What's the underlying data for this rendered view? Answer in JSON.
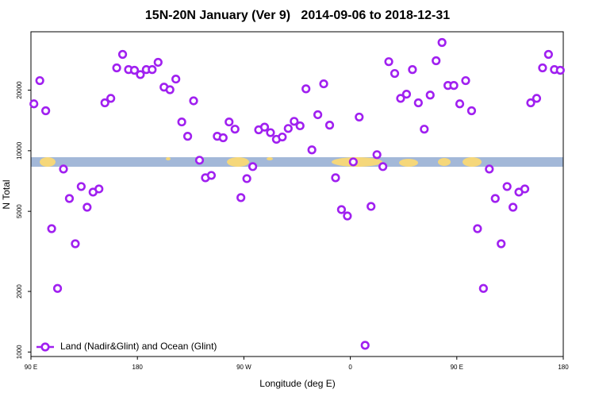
{
  "chart_data": {
    "type": "scatter",
    "title": "15N-20N January (Ver 9)   2014-09-06 to 2018-12-31",
    "x_label": "Longitude (deg E)",
    "y_label": "N Total",
    "xlim": [
      90,
      540
    ],
    "ylim": [
      950,
      39000
    ],
    "y_scale": "log",
    "xticks": [
      {
        "value": 90,
        "label": "90 E"
      },
      {
        "value": 180,
        "label": "180"
      },
      {
        "value": 270,
        "label": "90 W"
      },
      {
        "value": 360,
        "label": "0"
      },
      {
        "value": 450,
        "label": "90 E"
      },
      {
        "value": 540,
        "label": "180"
      }
    ],
    "yticks": [
      1000,
      2000,
      5000,
      10000,
      20000
    ],
    "legend": "lower left",
    "series": [
      {
        "name": "Land (Nadir&Glint) and Ocean (Glint)",
        "color": "#a020f0",
        "x": [
          92.5,
          97.5,
          102.5,
          107.5,
          112.5,
          117.5,
          122.5,
          127.5,
          132.5,
          137.5,
          142.5,
          147.5,
          152.5,
          157.5,
          162.5,
          167.5,
          172.5,
          177.5,
          182.5,
          187.5,
          192.5,
          197.5,
          202.5,
          207.5,
          212.5,
          217.5,
          222.5,
          227.5,
          232.5,
          237.5,
          242.5,
          247.5,
          252.5,
          257.5,
          262.5,
          267.5,
          272.5,
          277.5,
          282.5,
          287.5,
          292.5,
          297.5,
          302.5,
          307.5,
          312.5,
          317.5,
          322.5,
          327.5,
          332.5,
          337.5,
          342.5,
          347.5,
          352.5,
          357.5,
          362.5,
          367.5,
          372.5,
          377.5,
          382.5,
          387.5,
          392.5,
          397.5,
          402.5,
          407.5,
          412.5,
          417.5,
          422.5,
          427.5,
          432.5,
          437.5,
          442.5,
          447.5,
          452.5,
          457.5,
          462.5,
          467.5,
          472.5,
          477.5,
          482.5,
          487.5,
          492.5,
          497.5,
          502.5,
          507.5,
          512.5,
          517.5,
          522.5,
          527.5,
          532.5,
          537.5
        ],
        "values": [
          17100,
          22300,
          15800,
          4100,
          2070,
          8110,
          5790,
          3450,
          6640,
          5240,
          6230,
          6460,
          17300,
          18200,
          25800,
          30100,
          25300,
          25100,
          23900,
          25300,
          25300,
          27500,
          20700,
          20100,
          22700,
          13900,
          11800,
          17700,
          8970,
          7340,
          7540,
          11800,
          11600,
          13900,
          12800,
          5850,
          7270,
          8340,
          12700,
          13100,
          12300,
          11400,
          11700,
          12900,
          14000,
          13300,
          20300,
          10100,
          15100,
          21500,
          13400,
          7340,
          5100,
          4740,
          8800,
          14700,
          1080,
          5290,
          9560,
          8340,
          27700,
          24200,
          18200,
          19100,
          25300,
          17300,
          12800,
          18900,
          28000,
          34500,
          21100,
          21100,
          17100,
          22300,
          15800,
          4100,
          2070,
          8110,
          5790,
          3450,
          6640,
          5240,
          6230,
          6460,
          17300,
          18200,
          25800,
          30100,
          25300,
          25100
        ]
      }
    ]
  }
}
